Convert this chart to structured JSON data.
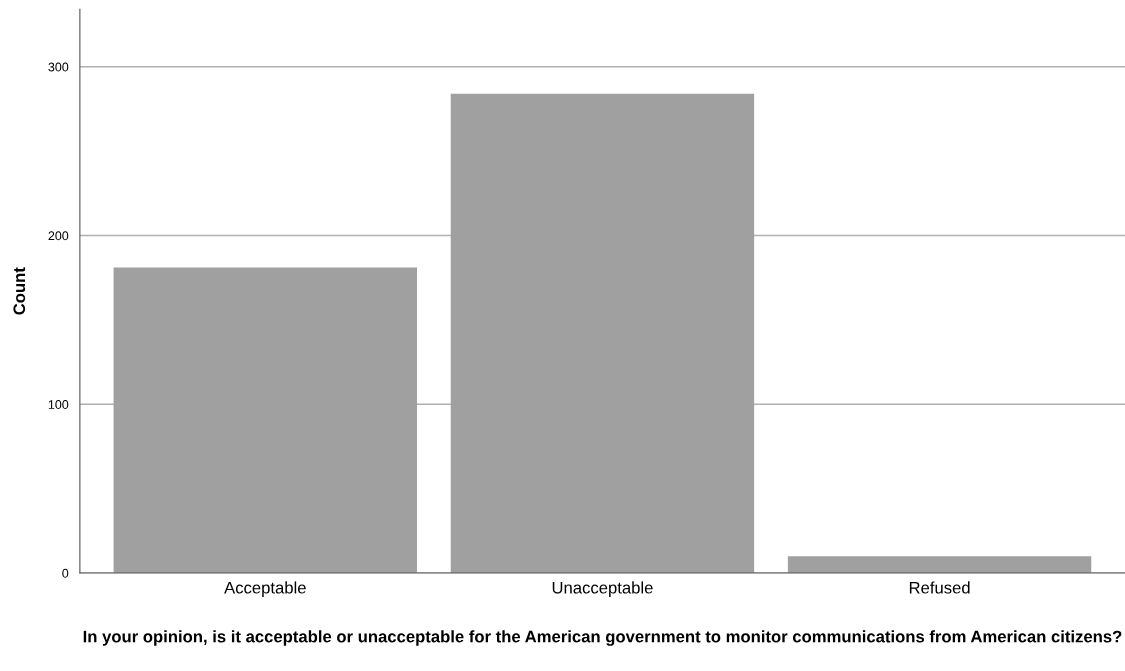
{
  "chart_data": {
    "type": "bar",
    "xlabel": "In your opinion, is it acceptable or unacceptable for the American government to monitor communications from American citizens?",
    "ylabel": "Count",
    "categories": [
      "Acceptable",
      "Unacceptable",
      "Refused"
    ],
    "values": [
      181,
      284,
      10
    ],
    "color": "#a0a0a0",
    "ylim": [
      0,
      334
    ],
    "yticks": [
      0,
      100,
      200,
      300
    ],
    "grid": "y"
  }
}
